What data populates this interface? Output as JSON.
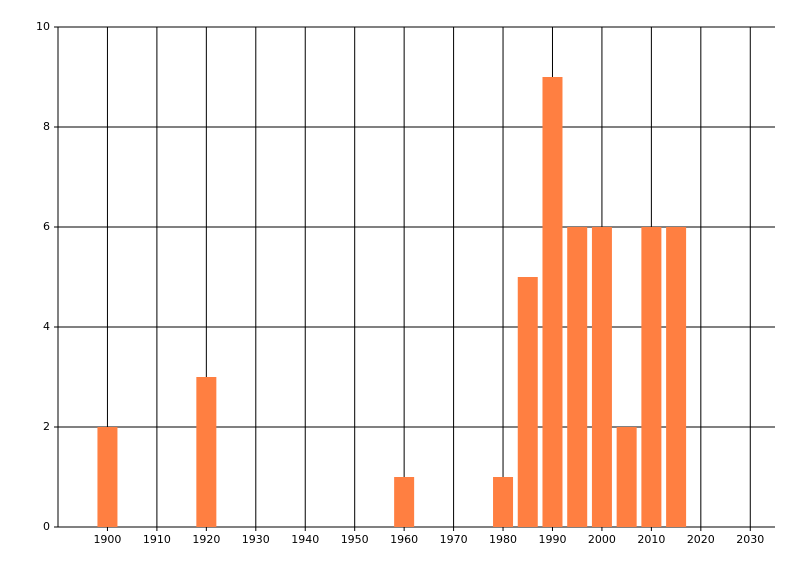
{
  "chart_data": {
    "type": "bar",
    "x": [
      1900,
      1920,
      1960,
      1980,
      1985,
      1990,
      1995,
      2000,
      2005,
      2010,
      2015
    ],
    "values": [
      2,
      3,
      1,
      1,
      5,
      9,
      6,
      6,
      2,
      6,
      6
    ],
    "color": "#ff7f41",
    "xlim": [
      1890,
      2035
    ],
    "xticks": [
      1900,
      1910,
      1920,
      1930,
      1940,
      1950,
      1960,
      1970,
      1980,
      1990,
      2000,
      2010,
      2020,
      2030
    ],
    "ylim": [
      0,
      10
    ],
    "yticks": [
      0,
      2,
      4,
      6,
      8,
      10
    ],
    "grid": true
  }
}
